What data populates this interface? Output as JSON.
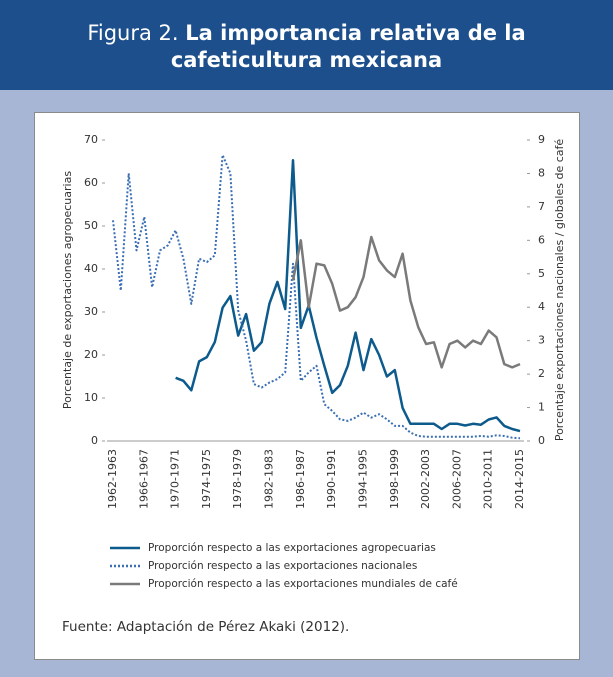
{
  "chart_data": {
    "type": "line",
    "figure_label": "Figura 2.",
    "title": "La importancia relativa de la cafeticultura mexicana",
    "ylabel": "Porcentaje de exportaciones agropecuarias",
    "y2label": "Porcentaje exportaciones nacionales / globales de café",
    "source": "Fuente: Adaptación de Pérez Akaki (2012).",
    "categories": [
      "1962-1963",
      null,
      null,
      null,
      "1966-1967",
      null,
      null,
      null,
      "1970-1971",
      null,
      null,
      null,
      "1974-1975",
      null,
      null,
      null,
      "1978-1979",
      null,
      null,
      null,
      "1982-1983",
      null,
      null,
      null,
      "1986-1987",
      null,
      null,
      null,
      "1990-1991",
      null,
      null,
      null,
      "1994-1995",
      null,
      null,
      null,
      "1998-1999",
      null,
      null,
      null,
      "2002-2003",
      null,
      null,
      null,
      "2006-2007",
      null,
      null,
      null,
      "2010-2011",
      null,
      null,
      null,
      "2014-2015"
    ],
    "ylim": [
      0,
      70
    ],
    "yticks": [
      0,
      10,
      20,
      30,
      40,
      50,
      60,
      70
    ],
    "y2lim": [
      0,
      9
    ],
    "y2ticks": [
      0,
      1,
      2,
      3,
      4,
      5,
      6,
      7,
      8,
      9
    ],
    "series": [
      {
        "name": "Proporción respecto a las exportaciones agropecuarias",
        "color": "#0d5a8c",
        "style": "solid",
        "values": [
          null,
          null,
          null,
          null,
          null,
          null,
          null,
          null,
          14.7,
          14,
          11.8,
          18.5,
          19.5,
          23,
          31,
          33.7,
          24.5,
          29.5,
          21,
          23,
          32,
          37,
          30.7,
          65.3,
          26.3,
          31.5,
          24,
          17.5,
          11.2,
          13,
          17.5,
          25.2,
          16.5,
          23.7,
          20,
          15,
          16.5,
          7.7,
          4,
          4,
          4,
          4,
          2.8,
          4,
          4,
          3.6,
          4,
          3.8,
          5,
          5.5,
          3.5,
          2.8,
          2.3
        ]
      },
      {
        "name": "Proporción respecto a las exportaciones nacionales",
        "color": "#3a6fb3",
        "style": "dotted",
        "axis": "y2",
        "values": [
          6.6,
          4.5,
          8,
          5.7,
          6.7,
          4.6,
          5.7,
          5.85,
          6.3,
          5.45,
          4.1,
          5.45,
          5.35,
          5.55,
          8.55,
          8,
          3.9,
          3,
          1.7,
          1.6,
          1.75,
          1.85,
          2.05,
          5.3,
          1.8,
          2.05,
          2.25,
          1.1,
          0.9,
          0.65,
          0.6,
          0.7,
          0.85,
          0.7,
          0.8,
          0.65,
          0.45,
          0.45,
          0.25,
          0.15,
          0.13,
          0.13,
          0.13,
          0.13,
          0.13,
          0.13,
          0.13,
          0.15,
          0.13,
          0.17,
          0.15,
          0.1,
          0.08
        ]
      },
      {
        "name": "Proporción respecto a las exportaciones mundiales de café",
        "color": "#7a7a7a",
        "style": "solid",
        "axis": "y2",
        "values": [
          null,
          null,
          null,
          null,
          null,
          null,
          null,
          null,
          null,
          null,
          null,
          null,
          null,
          null,
          null,
          null,
          null,
          null,
          null,
          null,
          null,
          null,
          null,
          4.8,
          6,
          4,
          5.3,
          5.25,
          4.7,
          3.9,
          4,
          4.3,
          4.9,
          6.1,
          5.4,
          5.1,
          4.9,
          5.6,
          4.2,
          3.4,
          2.9,
          2.95,
          2.2,
          2.9,
          3,
          2.8,
          3,
          2.9,
          3.3,
          3.1,
          2.3,
          2.2,
          2.3
        ]
      }
    ]
  }
}
